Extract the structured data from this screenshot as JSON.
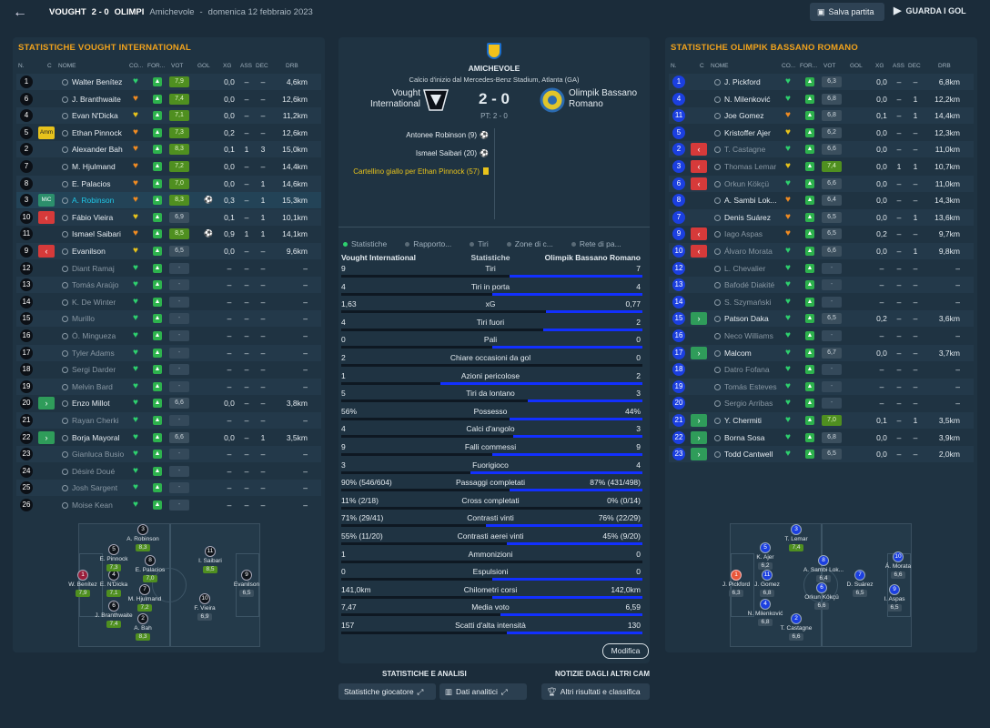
{
  "header": {
    "back": "←",
    "home_short": "VOUGHT",
    "score": "2 - 0",
    "away_short": "OLIMPI",
    "match_type": "Amichevole",
    "sep": "-",
    "date": "domenica 12 febbraio 2023",
    "save_label": "Salva partita",
    "watch_label": "GUARDA I GOL"
  },
  "columns": {
    "n": "N.",
    "c": "C",
    "name": "NOME",
    "co": "CO...",
    "for": "FOR...",
    "vot": "VOT",
    "gol": "GOL",
    "xg": "XG",
    "ass": "ASS",
    "dec": "DEC",
    "drb": "DRB"
  },
  "home": {
    "title": "STATISTICHE VOUGHT INTERNATIONAL",
    "players": [
      {
        "n": "1",
        "sub": "",
        "name": "Walter Benítez",
        "cond": "heart-green",
        "vot": "7,9",
        "vg": true,
        "ic": "",
        "xg": "0,0",
        "ass": "–",
        "dec": "–",
        "drb": "4,6km"
      },
      {
        "n": "6",
        "sub": "",
        "name": "J. Branthwaite",
        "cond": "heart-orange",
        "vot": "7,4",
        "vg": true,
        "ic": "",
        "xg": "0,0",
        "ass": "–",
        "dec": "–",
        "drb": "12,6km"
      },
      {
        "n": "4",
        "sub": "",
        "name": "Evan N'Dicka",
        "cond": "heart-yellow",
        "vot": "7,1",
        "vg": true,
        "ic": "",
        "xg": "0,0",
        "ass": "–",
        "dec": "–",
        "drb": "11,2km"
      },
      {
        "n": "5",
        "sub": "Amm",
        "name": "Ethan Pinnock",
        "cond": "heart-orange",
        "vot": "7,3",
        "vg": true,
        "ic": "",
        "xg": "0,2",
        "ass": "–",
        "dec": "–",
        "drb": "12,6km"
      },
      {
        "n": "2",
        "sub": "",
        "name": "Alexander Bah",
        "cond": "heart-orange",
        "vot": "8,3",
        "vg": true,
        "ic": "",
        "xg": "0,1",
        "ass": "1",
        "dec": "3",
        "drb": "15,0km"
      },
      {
        "n": "7",
        "sub": "",
        "name": "M. Hjulmand",
        "cond": "heart-orange",
        "vot": "7,2",
        "vg": true,
        "ic": "",
        "xg": "0,0",
        "ass": "–",
        "dec": "–",
        "drb": "14,4km"
      },
      {
        "n": "8",
        "sub": "",
        "name": "E. Palacios",
        "cond": "heart-orange",
        "vot": "7,0",
        "vg": true,
        "ic": "",
        "xg": "0,0",
        "ass": "–",
        "dec": "1",
        "drb": "14,6km"
      },
      {
        "n": "3",
        "sub": "MiC",
        "name": "A. Robinson",
        "cond": "heart-orange",
        "vot": "8,3",
        "vg": true,
        "ic": "⚽",
        "xg": "0,3",
        "ass": "–",
        "dec": "1",
        "drb": "15,3km",
        "hl": true
      },
      {
        "n": "10",
        "sub": "out",
        "name": "Fábio Vieira",
        "cond": "heart-yellow",
        "vot": "6,9",
        "vg": false,
        "ic": "",
        "xg": "0,1",
        "ass": "–",
        "dec": "1",
        "drb": "10,1km"
      },
      {
        "n": "11",
        "sub": "",
        "name": "Ismael Saibari",
        "cond": "heart-orange",
        "vot": "8,5",
        "vg": true,
        "ic": "⚽",
        "xg": "0,9",
        "ass": "1",
        "dec": "1",
        "drb": "14,1km"
      },
      {
        "n": "9",
        "sub": "out",
        "name": "Evanilson",
        "cond": "heart-yellow",
        "vot": "6,5",
        "vg": false,
        "ic": "",
        "xg": "0,0",
        "ass": "–",
        "dec": "–",
        "drb": "9,6km"
      },
      {
        "n": "12",
        "sub": "",
        "name": "Diant Ramaj",
        "cond": "heart-green",
        "vot": "-",
        "dim": true,
        "xg": "–",
        "ass": "–",
        "dec": "–",
        "drb": "–"
      },
      {
        "n": "13",
        "sub": "",
        "name": "Tomás Araújo",
        "cond": "heart-green",
        "vot": "-",
        "dim": true,
        "xg": "–",
        "ass": "–",
        "dec": "–",
        "drb": "–"
      },
      {
        "n": "14",
        "sub": "",
        "name": "K. De Winter",
        "cond": "heart-green",
        "vot": "-",
        "dim": true,
        "xg": "–",
        "ass": "–",
        "dec": "–",
        "drb": "–"
      },
      {
        "n": "15",
        "sub": "",
        "name": "Murillo",
        "cond": "heart-green",
        "vot": "-",
        "dim": true,
        "xg": "–",
        "ass": "–",
        "dec": "–",
        "drb": "–"
      },
      {
        "n": "16",
        "sub": "",
        "name": "Ó. Mingueza",
        "cond": "heart-green",
        "vot": "-",
        "dim": true,
        "xg": "–",
        "ass": "–",
        "dec": "–",
        "drb": "–"
      },
      {
        "n": "17",
        "sub": "",
        "name": "Tyler Adams",
        "cond": "heart-green",
        "vot": "-",
        "dim": true,
        "xg": "–",
        "ass": "–",
        "dec": "–",
        "drb": "–"
      },
      {
        "n": "18",
        "sub": "",
        "name": "Sergi Darder",
        "cond": "heart-green",
        "vot": "-",
        "dim": true,
        "xg": "–",
        "ass": "–",
        "dec": "–",
        "drb": "–"
      },
      {
        "n": "19",
        "sub": "",
        "name": "Melvin Bard",
        "cond": "heart-green",
        "vot": "-",
        "dim": true,
        "xg": "–",
        "ass": "–",
        "dec": "–",
        "drb": "–"
      },
      {
        "n": "20",
        "sub": "in",
        "name": "Enzo Millot",
        "cond": "heart-green",
        "vot": "6,6",
        "vg": false,
        "ic": "",
        "xg": "0,0",
        "ass": "–",
        "dec": "–",
        "drb": "3,8km"
      },
      {
        "n": "21",
        "sub": "",
        "name": "Rayan Cherki",
        "cond": "heart-green",
        "vot": "-",
        "dim": true,
        "xg": "–",
        "ass": "–",
        "dec": "–",
        "drb": "–"
      },
      {
        "n": "22",
        "sub": "in",
        "name": "Borja Mayoral",
        "cond": "heart-green",
        "vot": "6,6",
        "vg": false,
        "ic": "",
        "xg": "0,0",
        "ass": "–",
        "dec": "1",
        "drb": "3,5km"
      },
      {
        "n": "23",
        "sub": "",
        "name": "Gianluca Busio",
        "cond": "heart-green",
        "vot": "-",
        "dim": true,
        "xg": "–",
        "ass": "–",
        "dec": "–",
        "drb": "–"
      },
      {
        "n": "24",
        "sub": "",
        "name": "Désiré Doué",
        "cond": "heart-green",
        "vot": "-",
        "dim": true,
        "xg": "–",
        "ass": "–",
        "dec": "–",
        "drb": "–"
      },
      {
        "n": "25",
        "sub": "",
        "name": "Josh Sargent",
        "cond": "heart-green",
        "vot": "-",
        "dim": true,
        "xg": "–",
        "ass": "–",
        "dec": "–",
        "drb": "–"
      },
      {
        "n": "26",
        "sub": "",
        "name": "Moise Kean",
        "cond": "heart-green",
        "vot": "-",
        "dim": true,
        "xg": "–",
        "ass": "–",
        "dec": "–",
        "drb": "–"
      }
    ],
    "pitch": [
      {
        "n": "1",
        "name": "W. Benítez",
        "v": "7,9",
        "style": "m"
      },
      {
        "n": "6",
        "name": "J. Branthwaite",
        "v": "7,4"
      },
      {
        "n": "4",
        "name": "E. N'Dicka",
        "v": "7,1"
      },
      {
        "n": "5",
        "name": "E. Pinnock",
        "v": "7,3"
      },
      {
        "n": "2",
        "name": "A. Bah",
        "v": "8,3"
      },
      {
        "n": "7",
        "name": "M. Hjulmand",
        "v": "7,2"
      },
      {
        "n": "8",
        "name": "E. Palacios",
        "v": "7,0"
      },
      {
        "n": "3",
        "name": "A. Robinson",
        "v": "8,3"
      },
      {
        "n": "10",
        "name": "F. Vieira",
        "v": "6,9",
        "plain": true
      },
      {
        "n": "11",
        "name": "I. Saibari",
        "v": "8,5"
      },
      {
        "n": "9",
        "name": "Evanilson",
        "v": "6,5",
        "plain": true
      }
    ]
  },
  "away": {
    "title": "STATISTICHE OLIMPIK BASSANO ROMANO",
    "players": [
      {
        "n": "1",
        "sub": "",
        "name": "J. Pickford",
        "cond": "heart-green",
        "vot": "6,3",
        "vg": false,
        "xg": "0,0",
        "ass": "–",
        "dec": "–",
        "drb": "6,8km"
      },
      {
        "n": "4",
        "sub": "",
        "name": "N. Milenković",
        "cond": "heart-green",
        "vot": "6,8",
        "vg": false,
        "xg": "0,0",
        "ass": "–",
        "dec": "1",
        "drb": "12,2km"
      },
      {
        "n": "11",
        "sub": "",
        "name": "Joe Gomez",
        "cond": "heart-orange",
        "vot": "6,8",
        "vg": false,
        "xg": "0,1",
        "ass": "–",
        "dec": "1",
        "drb": "14,4km"
      },
      {
        "n": "5",
        "sub": "",
        "name": "Kristoffer Ajer",
        "cond": "heart-yellow",
        "vot": "6,2",
        "vg": false,
        "xg": "0,0",
        "ass": "–",
        "dec": "–",
        "drb": "12,3km"
      },
      {
        "n": "2",
        "sub": "out",
        "name": "T. Castagne",
        "cond": "heart-green",
        "vot": "6,6",
        "vg": false,
        "xg": "0,0",
        "ass": "–",
        "dec": "–",
        "drb": "11,0km",
        "dimname": true
      },
      {
        "n": "3",
        "sub": "out",
        "name": "Thomas Lemar",
        "cond": "heart-yellow",
        "vot": "7,4",
        "vg": true,
        "xg": "0,0",
        "ass": "1",
        "dec": "1",
        "drb": "10,7km",
        "dimname": true
      },
      {
        "n": "6",
        "sub": "out",
        "name": "Orkun Kökçü",
        "cond": "heart-green",
        "vot": "6,6",
        "vg": false,
        "xg": "0,0",
        "ass": "–",
        "dec": "–",
        "drb": "11,0km",
        "dimname": true
      },
      {
        "n": "8",
        "sub": "",
        "name": "A. Sambi Lok...",
        "cond": "heart-orange",
        "vot": "6,4",
        "vg": false,
        "xg": "0,0",
        "ass": "–",
        "dec": "–",
        "drb": "14,3km"
      },
      {
        "n": "7",
        "sub": "",
        "name": "Denis Suárez",
        "cond": "heart-orange",
        "vot": "6,5",
        "vg": false,
        "xg": "0,0",
        "ass": "–",
        "dec": "1",
        "drb": "13,6km"
      },
      {
        "n": "9",
        "sub": "out",
        "name": "Iago Aspas",
        "cond": "heart-orange",
        "vot": "6,5",
        "vg": false,
        "xg": "0,2",
        "ass": "–",
        "dec": "–",
        "drb": "9,7km",
        "dimname": true
      },
      {
        "n": "10",
        "sub": "out",
        "name": "Álvaro Morata",
        "cond": "heart-green",
        "vot": "6,6",
        "vg": false,
        "xg": "0,0",
        "ass": "–",
        "dec": "1",
        "drb": "9,8km",
        "dimname": true
      },
      {
        "n": "12",
        "sub": "",
        "name": "L. Chevalier",
        "cond": "heart-green",
        "vot": "-",
        "dim": true,
        "xg": "–",
        "ass": "–",
        "dec": "–",
        "drb": "–"
      },
      {
        "n": "13",
        "sub": "",
        "name": "Bafodé Diakité",
        "cond": "heart-green",
        "vot": "-",
        "dim": true,
        "xg": "–",
        "ass": "–",
        "dec": "–",
        "drb": "–"
      },
      {
        "n": "14",
        "sub": "",
        "name": "S. Szymański",
        "cond": "heart-green",
        "vot": "-",
        "dim": true,
        "xg": "–",
        "ass": "–",
        "dec": "–",
        "drb": "–"
      },
      {
        "n": "15",
        "sub": "in",
        "name": "Patson Daka",
        "cond": "heart-green",
        "vot": "6,5",
        "vg": false,
        "xg": "0,2",
        "ass": "–",
        "dec": "–",
        "drb": "3,6km"
      },
      {
        "n": "16",
        "sub": "",
        "name": "Neco Williams",
        "cond": "heart-green",
        "vot": "-",
        "dim": true,
        "xg": "–",
        "ass": "–",
        "dec": "–",
        "drb": "–"
      },
      {
        "n": "17",
        "sub": "in",
        "name": "Malcom",
        "cond": "heart-green",
        "vot": "6,7",
        "vg": false,
        "xg": "0,0",
        "ass": "–",
        "dec": "–",
        "drb": "3,7km"
      },
      {
        "n": "18",
        "sub": "",
        "name": "Datro Fofana",
        "cond": "heart-green",
        "vot": "-",
        "dim": true,
        "xg": "–",
        "ass": "–",
        "dec": "–",
        "drb": "–"
      },
      {
        "n": "19",
        "sub": "",
        "name": "Tomás Esteves",
        "cond": "heart-green",
        "vot": "-",
        "dim": true,
        "xg": "–",
        "ass": "–",
        "dec": "–",
        "drb": "–"
      },
      {
        "n": "20",
        "sub": "",
        "name": "Sergio Arribas",
        "cond": "heart-green",
        "vot": "-",
        "dim": true,
        "xg": "–",
        "ass": "–",
        "dec": "–",
        "drb": "–"
      },
      {
        "n": "21",
        "sub": "in",
        "name": "Y. Chermiti",
        "cond": "heart-green",
        "vot": "7,0",
        "vg": true,
        "xg": "0,1",
        "ass": "–",
        "dec": "1",
        "drb": "3,5km"
      },
      {
        "n": "22",
        "sub": "in",
        "name": "Borna Sosa",
        "cond": "heart-green",
        "vot": "6,8",
        "vg": false,
        "xg": "0,0",
        "ass": "–",
        "dec": "–",
        "drb": "3,9km"
      },
      {
        "n": "23",
        "sub": "in",
        "name": "Todd Cantwell",
        "cond": "heart-green",
        "vot": "6,5",
        "vg": false,
        "xg": "0,0",
        "ass": "–",
        "dec": "–",
        "drb": "2,0km"
      }
    ],
    "pitch": [
      {
        "n": "1",
        "name": "J. Pickford",
        "v": "6,3",
        "style": "r"
      },
      {
        "n": "4",
        "name": "N. Milenković",
        "v": "6,8"
      },
      {
        "n": "11",
        "name": "J. Gomez",
        "v": "6,8"
      },
      {
        "n": "5",
        "name": "K. Ajer",
        "v": "6,2"
      },
      {
        "n": "2",
        "name": "T. Castagne",
        "v": "6,6"
      },
      {
        "n": "3",
        "name": "T. Lemar",
        "v": "7,4",
        "g": true
      },
      {
        "n": "8",
        "name": "A. Sambi Lok...",
        "v": "6,4"
      },
      {
        "n": "6",
        "name": "Orkun Kökçü",
        "v": "6,6"
      },
      {
        "n": "7",
        "name": "D. Suárez",
        "v": "6,5"
      },
      {
        "n": "10",
        "name": "Á. Morata",
        "v": "6,6"
      },
      {
        "n": "9",
        "name": "I. Aspas",
        "v": "6,5"
      }
    ]
  },
  "match": {
    "type": "AMICHEVOLE",
    "kickoff": "Calcio d'inizio dal Mercedes-Benz Stadium, Atlanta (GA)",
    "home_name_1": "Vought",
    "home_name_2": "International",
    "away_name_1": "Olimpik Bassano",
    "away_name_2": "Romano",
    "score": "2 - 0",
    "ht": "PT: 2 - 0",
    "events": [
      {
        "text": "Antonee Robinson (9)",
        "icon": "⚽"
      },
      {
        "text": "Ismael Saibari (20)",
        "icon": "⚽"
      },
      {
        "text": "Cartellino giallo per Ethan Pinnock (57)",
        "icon": "card"
      }
    ]
  },
  "tabs": [
    "Statistiche",
    "Rapporto...",
    "Tiri",
    "Zone di c...",
    "Rete di pa..."
  ],
  "stats_header": {
    "left": "Vought International",
    "center": "Statistiche",
    "right": "Olimpik Bassano Romano"
  },
  "stats": [
    {
      "label": "Tiri",
      "l": "9",
      "r": "7",
      "share": 0.56
    },
    {
      "label": "Tiri in porta",
      "l": "4",
      "r": "4",
      "share": 0.5
    },
    {
      "label": "xG",
      "l": "1,63",
      "r": "0,77",
      "share": 0.68
    },
    {
      "label": "Tiri fuori",
      "l": "4",
      "r": "2",
      "share": 0.67
    },
    {
      "label": "Pali",
      "l": "0",
      "r": "0",
      "share": 0.5
    },
    {
      "label": "Chiare occasioni da gol",
      "l": "2",
      "r": "0",
      "share": 1.0
    },
    {
      "label": "Azioni pericolose",
      "l": "1",
      "r": "2",
      "share": 0.33
    },
    {
      "label": "Tiri da lontano",
      "l": "5",
      "r": "3",
      "share": 0.62
    },
    {
      "label": "Possesso",
      "l": "56%",
      "r": "44%",
      "share": 0.56
    },
    {
      "label": "Calci d'angolo",
      "l": "4",
      "r": "3",
      "share": 0.57
    },
    {
      "label": "Falli commessi",
      "l": "9",
      "r": "9",
      "share": 0.5
    },
    {
      "label": "Fuorigioco",
      "l": "3",
      "r": "4",
      "share": 0.43
    },
    {
      "label": "Passaggi completati",
      "l": "90% (546/604)",
      "r": "87% (431/498)",
      "share": 0.56
    },
    {
      "label": "Cross completati",
      "l": "11% (2/18)",
      "r": "0% (0/14)",
      "share": 1.0
    },
    {
      "label": "Contrasti vinti",
      "l": "71% (29/41)",
      "r": "76% (22/29)",
      "share": 0.48
    },
    {
      "label": "Contrasti aerei vinti",
      "l": "55% (11/20)",
      "r": "45% (9/20)",
      "share": 0.55
    },
    {
      "label": "Ammonizioni",
      "l": "1",
      "r": "0",
      "share": 1.0
    },
    {
      "label": "Espulsioni",
      "l": "0",
      "r": "0",
      "share": 0.5
    },
    {
      "label": "Chilometri corsi",
      "l": "141,0km",
      "r": "142,0km",
      "share": 0.5
    },
    {
      "label": "Media voto",
      "l": "7,47",
      "r": "6,59",
      "share": 0.53
    },
    {
      "label": "Scatti d'alta intensità",
      "l": "157",
      "r": "130",
      "share": 0.55
    }
  ],
  "modifica": "Modifica",
  "bottom": {
    "left_title": "STATISTICHE E ANALISI",
    "right_title": "NOTIZIE DAGLI ALTRI CAM",
    "btn1": "Statistiche giocatore",
    "btn2": "Dati analitici",
    "btn3": "Altri risultati e classifica"
  },
  "colors": {
    "accent": "#f0a21c",
    "bar": "#1230ff",
    "green": "#2db24d"
  }
}
